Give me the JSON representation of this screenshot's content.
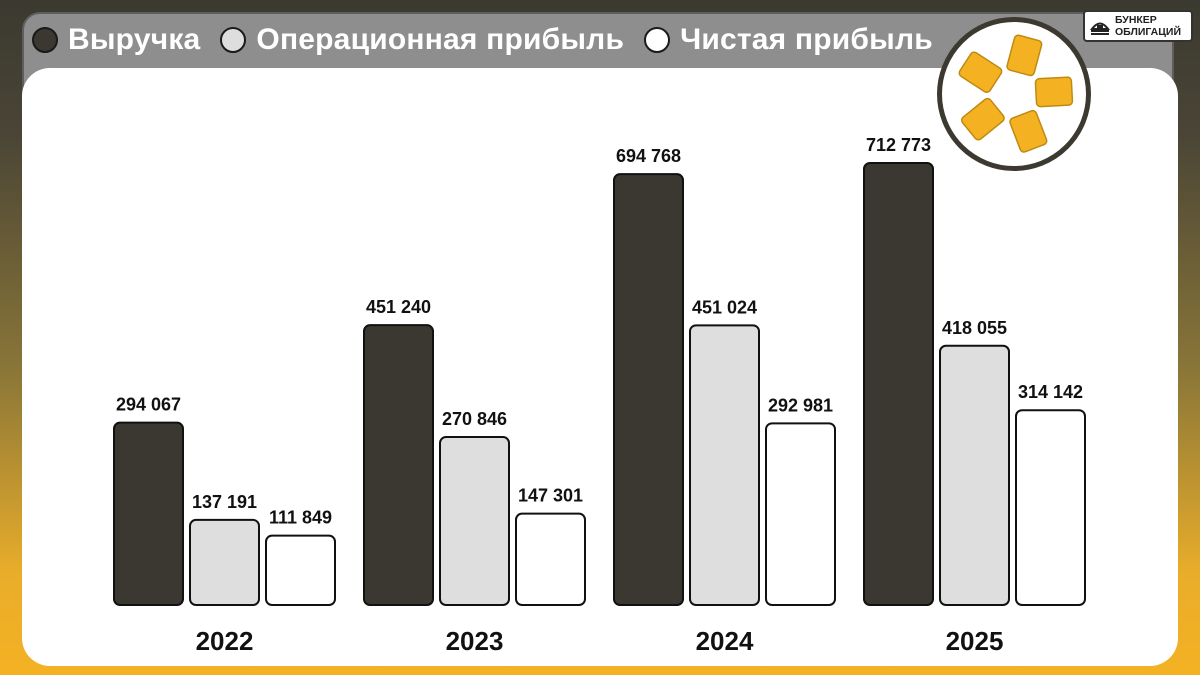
{
  "legend": {
    "items": [
      {
        "label": "Выручка",
        "color": "#3a3830"
      },
      {
        "label": "Операционная прибыль",
        "color": "#dedede"
      },
      {
        "label": "Чистая прибыль",
        "color": "#ffffff"
      }
    ]
  },
  "brand": {
    "line1": "БУНКЕР",
    "line2": "ОБЛИГАЦИЙ"
  },
  "colors": {
    "revenue": "#3a3830",
    "operating_profit": "#dedede",
    "net_profit": "#ffffff",
    "accent": "#f4b223"
  },
  "chart_data": {
    "type": "bar",
    "categories": [
      "2022",
      "2023",
      "2024",
      "2025"
    ],
    "series": [
      {
        "name": "Выручка",
        "values": [
          294067,
          451240,
          694768,
          712773
        ],
        "labels": [
          "294 067",
          "451 240",
          "694 768",
          "712 773"
        ]
      },
      {
        "name": "Операционная прибыль",
        "values": [
          137191,
          270846,
          451024,
          418055
        ],
        "labels": [
          "137 191",
          "270 846",
          "451 024",
          "418 055"
        ]
      },
      {
        "name": "Чистая прибыль",
        "values": [
          111849,
          147301,
          292981,
          314142
        ],
        "labels": [
          "111 849",
          "147 301",
          "292 981",
          "314 142"
        ]
      }
    ],
    "ylim": [
      0,
      712773
    ],
    "grid": false,
    "legend": "top-left"
  }
}
